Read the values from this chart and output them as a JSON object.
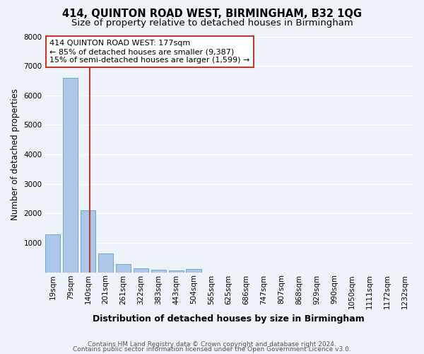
{
  "title": "414, QUINTON ROAD WEST, BIRMINGHAM, B32 1QG",
  "subtitle": "Size of property relative to detached houses in Birmingham",
  "xlabel": "Distribution of detached houses by size in Birmingham",
  "ylabel": "Number of detached properties",
  "categories": [
    "19sqm",
    "79sqm",
    "140sqm",
    "201sqm",
    "261sqm",
    "322sqm",
    "383sqm",
    "443sqm",
    "504sqm",
    "565sqm",
    "625sqm",
    "686sqm",
    "747sqm",
    "807sqm",
    "868sqm",
    "929sqm",
    "990sqm",
    "1050sqm",
    "1111sqm",
    "1172sqm",
    "1232sqm"
  ],
  "values": [
    1300,
    6600,
    2100,
    650,
    290,
    135,
    90,
    70,
    100,
    0,
    0,
    0,
    0,
    0,
    0,
    0,
    0,
    0,
    0,
    0,
    0
  ],
  "bar_color": "#aec6e8",
  "bar_edge_color": "#6aaad4",
  "background_color": "#eef2f9",
  "grid_color": "#ffffff",
  "property_line_color": "#c0392b",
  "annotation_line1": "414 QUINTON ROAD WEST: 177sqm",
  "annotation_line2": "← 85% of detached houses are smaller (9,387)",
  "annotation_line3": "15% of semi-detached houses are larger (1,599) →",
  "annotation_box_color": "#ffffff",
  "annotation_border_color": "#c0392b",
  "footer_line1": "Contains HM Land Registry data © Crown copyright and database right 2024.",
  "footer_line2": "Contains public sector information licensed under the Open Government Licence v3.0.",
  "ylim": [
    0,
    8000
  ],
  "yticks": [
    0,
    1000,
    2000,
    3000,
    4000,
    5000,
    6000,
    7000,
    8000
  ],
  "title_fontsize": 10.5,
  "subtitle_fontsize": 9.5,
  "xlabel_fontsize": 9,
  "ylabel_fontsize": 8.5,
  "tick_fontsize": 7.5,
  "annotation_fontsize": 8,
  "footer_fontsize": 6.5
}
